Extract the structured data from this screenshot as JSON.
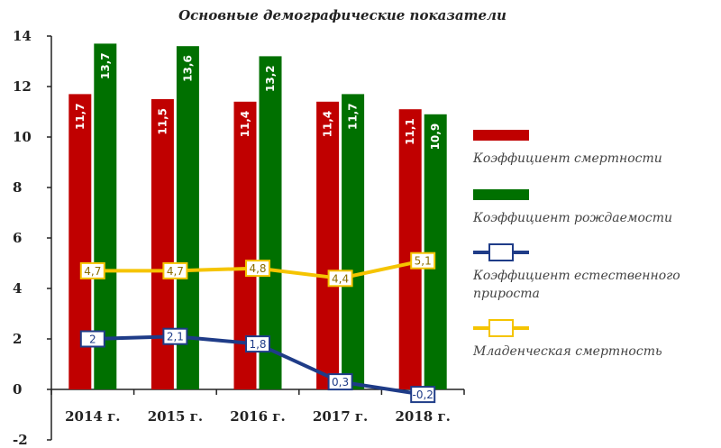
{
  "chart_data": {
    "type": "bar",
    "title": "Основные демографические показатели",
    "categories": [
      "2014 г.",
      "2015 г.",
      "2016 г.",
      "2017 г.",
      "2018 г."
    ],
    "ylim": [
      -2,
      14
    ],
    "yticks": [
      "-2",
      "0",
      "2",
      "4",
      "6",
      "8",
      "10",
      "12",
      "14"
    ],
    "series": [
      {
        "name": "Коэффициент смертности",
        "kind": "bar",
        "color": "#c00000",
        "values": [
          11.7,
          11.5,
          11.4,
          11.4,
          11.1
        ],
        "labels": [
          "11,7",
          "11,5",
          "11,4",
          "11,4",
          "11,1"
        ]
      },
      {
        "name": "Коэффициент рождаемости",
        "kind": "bar",
        "color": "#007000",
        "values": [
          13.7,
          13.6,
          13.2,
          11.7,
          10.9
        ],
        "labels": [
          "13,7",
          "13,6",
          "13,2",
          "11,7",
          "10,9"
        ]
      },
      {
        "name": "Коэффициент естественного прироста",
        "kind": "line",
        "color": "#1f3c88",
        "values": [
          2,
          2.1,
          1.8,
          0.3,
          -0.2
        ],
        "labels": [
          "2",
          "2,1",
          "1,8",
          "0,3",
          "-0,2"
        ]
      },
      {
        "name": "Младенческая смертность",
        "kind": "line",
        "color": "#f5c400",
        "values": [
          4.7,
          4.7,
          4.8,
          4.4,
          5.1
        ],
        "labels": [
          "4,7",
          "4,7",
          "4,8",
          "4,4",
          "5,1"
        ]
      }
    ],
    "legend": [
      {
        "lines": [
          "Коэффициент смертности"
        ],
        "color": "#c00000",
        "kind": "bar"
      },
      {
        "lines": [
          "Коэффициент рождаемости"
        ],
        "color": "#007000",
        "kind": "bar"
      },
      {
        "lines": [
          "Коэффициент естественного",
          "прироста"
        ],
        "color": "#1f3c88",
        "kind": "line"
      },
      {
        "lines": [
          "Младенческая смертность"
        ],
        "color": "#f5c400",
        "kind": "line"
      }
    ],
    "legend_position": "right",
    "grid": false
  }
}
